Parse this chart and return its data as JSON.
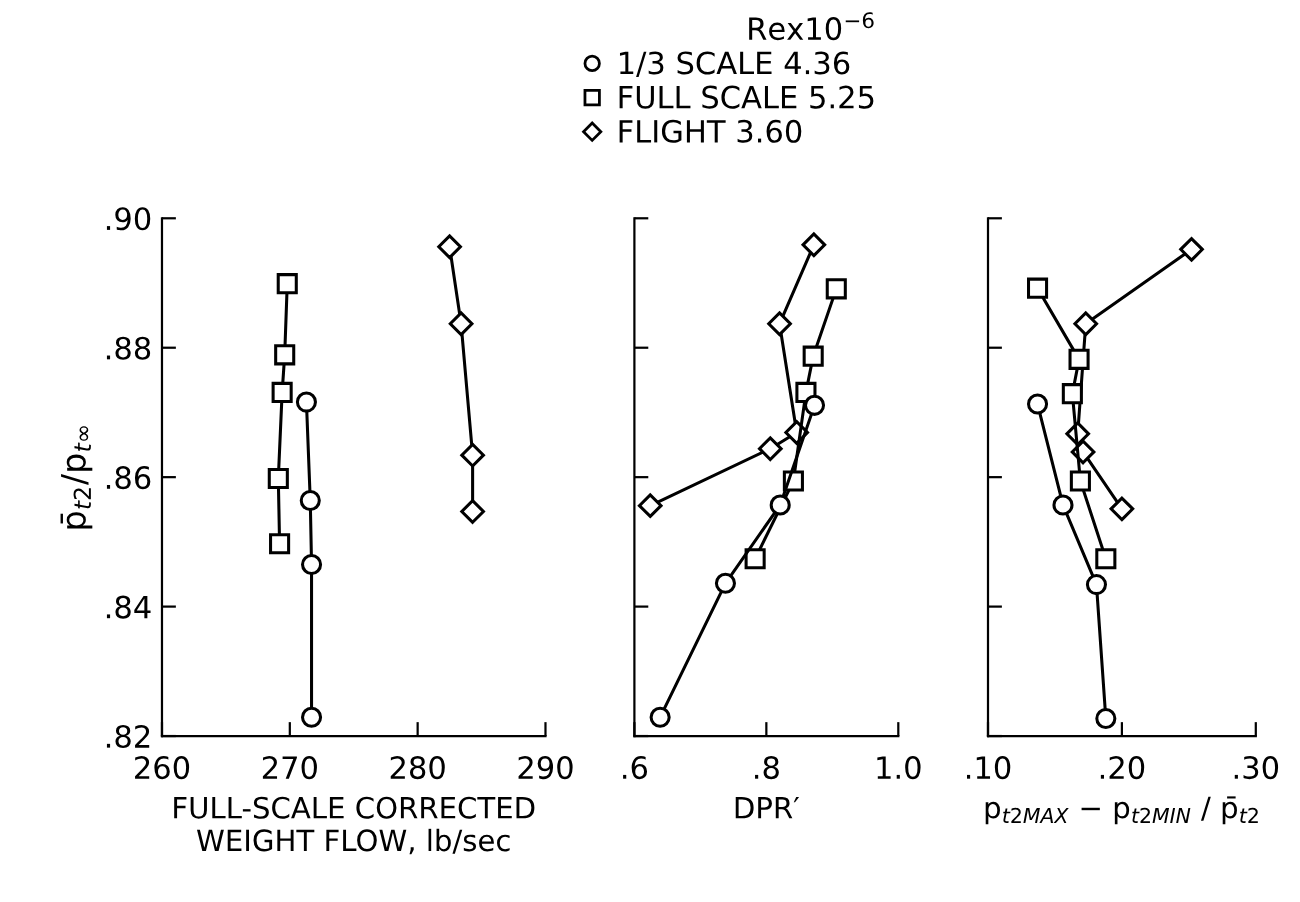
{
  "chart_data": [
    {
      "type": "line",
      "xlabel": "FULL-SCALE CORRECTED\nWEIGHT FLOW, lb/sec",
      "ylabel": "p̄$_{t2}$/p$_{t∞}$",
      "xlim": [
        260,
        290
      ],
      "xticks": [
        260,
        270,
        280,
        290
      ],
      "ylim": [
        0.82,
        0.9
      ],
      "yticks": [
        {
          "value": 0.82,
          "label": ".82"
        },
        {
          "value": 0.84,
          "label": ".84"
        },
        {
          "value": 0.86,
          "label": ".86"
        },
        {
          "value": 0.88,
          "label": ".88"
        },
        {
          "value": 0.9,
          "label": ".90"
        }
      ],
      "grid": false,
      "line_style": "solid",
      "legend": "top",
      "legend_title": "Rex10$^{−6}$",
      "series": [
        {
          "name": "1/3 SCALE 4.36",
          "color": "#000000",
          "marker": "circle",
          "x": [
            271.3,
            271.6,
            271.7,
            271.7
          ],
          "values": [
            0.8716,
            0.8564,
            0.8465,
            0.8229
          ]
        },
        {
          "name": "FULL SCALE 5.25",
          "color": "#000000",
          "marker": "square",
          "x": [
            269.8,
            269.6,
            269.4,
            269.1,
            269.2
          ],
          "values": [
            0.8899,
            0.8789,
            0.8731,
            0.8598,
            0.8497
          ]
        },
        {
          "name": "FLIGHT 3.60",
          "color": "#000000",
          "marker": "diamond",
          "x": [
            282.5,
            283.4,
            284.3,
            284.3
          ],
          "values": [
            0.8956,
            0.8837,
            0.8634,
            0.8547
          ]
        }
      ]
    },
    {
      "type": "line",
      "xlabel": "DPR′",
      "xlim": [
        0.6,
        1.0
      ],
      "xticks": [
        {
          "value": 0.6,
          "label": ".6"
        },
        {
          "value": 0.8,
          "label": ".8"
        },
        {
          "value": 1.0,
          "label": "1.0"
        }
      ],
      "ylim": [
        0.82,
        0.9
      ],
      "yticks": [
        {
          "value": 0.82,
          "label": null
        },
        {
          "value": 0.84,
          "label": null
        },
        {
          "value": 0.86,
          "label": null
        },
        {
          "value": 0.88,
          "label": null
        },
        {
          "value": 0.9,
          "label": null
        }
      ],
      "tick_labels": "x",
      "grid": false,
      "line_style": "solid",
      "series": [
        {
          "color": "#000000",
          "marker": "circle",
          "x": [
            0.873,
            0.821,
            0.738,
            0.639
          ],
          "values": [
            0.8711,
            0.8557,
            0.8436,
            0.8229
          ]
        },
        {
          "color": "#000000",
          "marker": "square",
          "x": [
            0.906,
            0.871,
            0.86,
            0.841,
            0.783
          ],
          "values": [
            0.8891,
            0.8787,
            0.8731,
            0.8594,
            0.8474
          ]
        },
        {
          "color": "#000000",
          "marker": "diamond",
          "x": [
            0.872,
            0.82,
            0.846,
            0.806,
            0.624
          ],
          "values": [
            0.8959,
            0.8837,
            0.8669,
            0.8644,
            0.8556
          ]
        }
      ]
    },
    {
      "type": "line",
      "xlabel": "p$_{t2MAX}$ − p$_{t2MIN}$ / p̄$_{t2}$",
      "xlim": [
        0.1,
        0.3
      ],
      "xticks": [
        {
          "value": 0.1,
          "label": ".10"
        },
        {
          "value": 0.2,
          "label": ".20"
        },
        {
          "value": 0.3,
          "label": ".30"
        }
      ],
      "ylim": [
        0.82,
        0.9
      ],
      "yticks": [
        {
          "value": 0.82,
          "label": null
        },
        {
          "value": 0.84,
          "label": null
        },
        {
          "value": 0.86,
          "label": null
        },
        {
          "value": 0.88,
          "label": null
        },
        {
          "value": 0.9,
          "label": null
        }
      ],
      "tick_labels": "x",
      "grid": false,
      "line_style": "solid",
      "series": [
        {
          "color": "#000000",
          "marker": "circle",
          "x": [
            0.137,
            0.156,
            0.181,
            0.188
          ],
          "values": [
            0.8713,
            0.8557,
            0.8434,
            0.8227
          ]
        },
        {
          "color": "#000000",
          "marker": "square",
          "x": [
            0.137,
            0.168,
            0.163,
            0.169,
            0.188
          ],
          "values": [
            0.8892,
            0.8782,
            0.8729,
            0.8594,
            0.8474
          ]
        },
        {
          "color": "#000000",
          "marker": "diamond",
          "x": [
            0.252,
            0.173,
            0.167,
            0.171,
            0.2
          ],
          "values": [
            0.8952,
            0.8837,
            0.8667,
            0.8639,
            0.8551
          ]
        }
      ]
    }
  ]
}
